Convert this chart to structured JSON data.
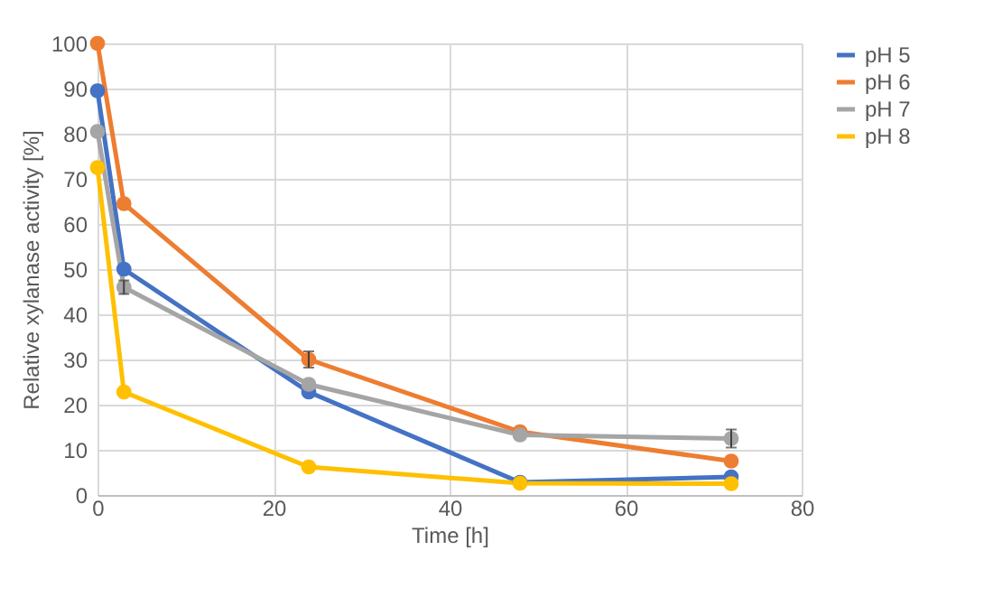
{
  "chart_data": {
    "type": "line",
    "xlabel": "Time [h]",
    "ylabel": "Relative xylanase activity [%]",
    "x": [
      0,
      3,
      24,
      48,
      72
    ],
    "series": [
      {
        "name": "pH 5",
        "color": "#4472c4",
        "values": [
          89.5,
          50,
          22.8,
          2.8,
          4
        ]
      },
      {
        "name": "pH 6",
        "color": "#ed7d31",
        "values": [
          100,
          64.5,
          30,
          14,
          7.5
        ],
        "errors": [
          null,
          null,
          1.8,
          null,
          null
        ]
      },
      {
        "name": "pH 7",
        "color": "#a5a5a5",
        "values": [
          80.5,
          46,
          24.5,
          13.3,
          12.5
        ],
        "errors": [
          null,
          1.5,
          null,
          null,
          2
        ]
      },
      {
        "name": "pH 8",
        "color": "#ffc000",
        "values": [
          72.5,
          22.8,
          6.2,
          2.6,
          2.5
        ]
      }
    ],
    "xlim": [
      0,
      80
    ],
    "xticks": [
      0,
      20,
      40,
      60,
      80
    ],
    "ylim": [
      0,
      100
    ],
    "yticks": [
      0,
      10,
      20,
      30,
      40,
      50,
      60,
      70,
      80,
      90,
      100
    ],
    "grid": true,
    "legend": "right",
    "marker": "circle",
    "line_style": "solid"
  }
}
